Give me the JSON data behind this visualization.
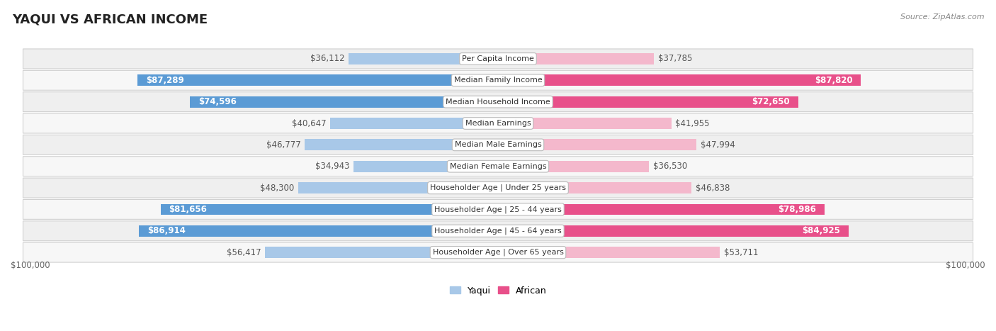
{
  "title": "YAQUI VS AFRICAN INCOME",
  "source": "Source: ZipAtlas.com",
  "categories": [
    "Per Capita Income",
    "Median Family Income",
    "Median Household Income",
    "Median Earnings",
    "Median Male Earnings",
    "Median Female Earnings",
    "Householder Age | Under 25 years",
    "Householder Age | 25 - 44 years",
    "Householder Age | 45 - 64 years",
    "Householder Age | Over 65 years"
  ],
  "yaqui_values": [
    36112,
    87289,
    74596,
    40647,
    46777,
    34943,
    48300,
    81656,
    86914,
    56417
  ],
  "african_values": [
    37785,
    87820,
    72650,
    41955,
    47994,
    36530,
    46838,
    78986,
    84925,
    53711
  ],
  "yaqui_labels": [
    "$36,112",
    "$87,289",
    "$74,596",
    "$40,647",
    "$46,777",
    "$34,943",
    "$48,300",
    "$81,656",
    "$86,914",
    "$56,417"
  ],
  "african_labels": [
    "$37,785",
    "$87,820",
    "$72,650",
    "$41,955",
    "$47,994",
    "$36,530",
    "$46,838",
    "$78,986",
    "$84,925",
    "$53,711"
  ],
  "max_value": 100000,
  "yaqui_color_light": "#a8c8e8",
  "yaqui_color_dark": "#5b9bd5",
  "african_color_light": "#f4b8cc",
  "african_color_dark": "#e8508a",
  "threshold": 60000,
  "legend_yaqui": "Yaqui",
  "legend_african": "African",
  "xlabel_left": "$100,000",
  "xlabel_right": "$100,000",
  "title_fontsize": 13,
  "label_fontsize": 8.5,
  "category_fontsize": 8.0,
  "row_colors": [
    "#f0f0f0",
    "#fafafa"
  ]
}
